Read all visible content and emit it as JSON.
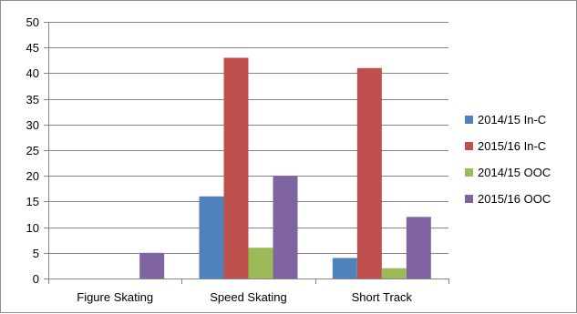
{
  "chart_data": {
    "type": "bar",
    "categories": [
      "Figure Skating",
      "Speed Skating",
      "Short Track"
    ],
    "series": [
      {
        "name": "2014/15 In-C",
        "values": [
          0,
          16,
          4
        ],
        "color": "#4f81bd"
      },
      {
        "name": "2015/16 In-C",
        "values": [
          0,
          43,
          41
        ],
        "color": "#c0504d"
      },
      {
        "name": "2014/15 OOC",
        "values": [
          0,
          6,
          2
        ],
        "color": "#9bbb59"
      },
      {
        "name": "2015/16 OOC",
        "values": [
          5,
          20,
          12
        ],
        "color": "#8064a2"
      }
    ],
    "ylim": [
      0,
      50
    ],
    "yticks": [
      0,
      5,
      10,
      15,
      20,
      25,
      30,
      35,
      40,
      45,
      50
    ],
    "grid": true,
    "legend_position": "right"
  }
}
